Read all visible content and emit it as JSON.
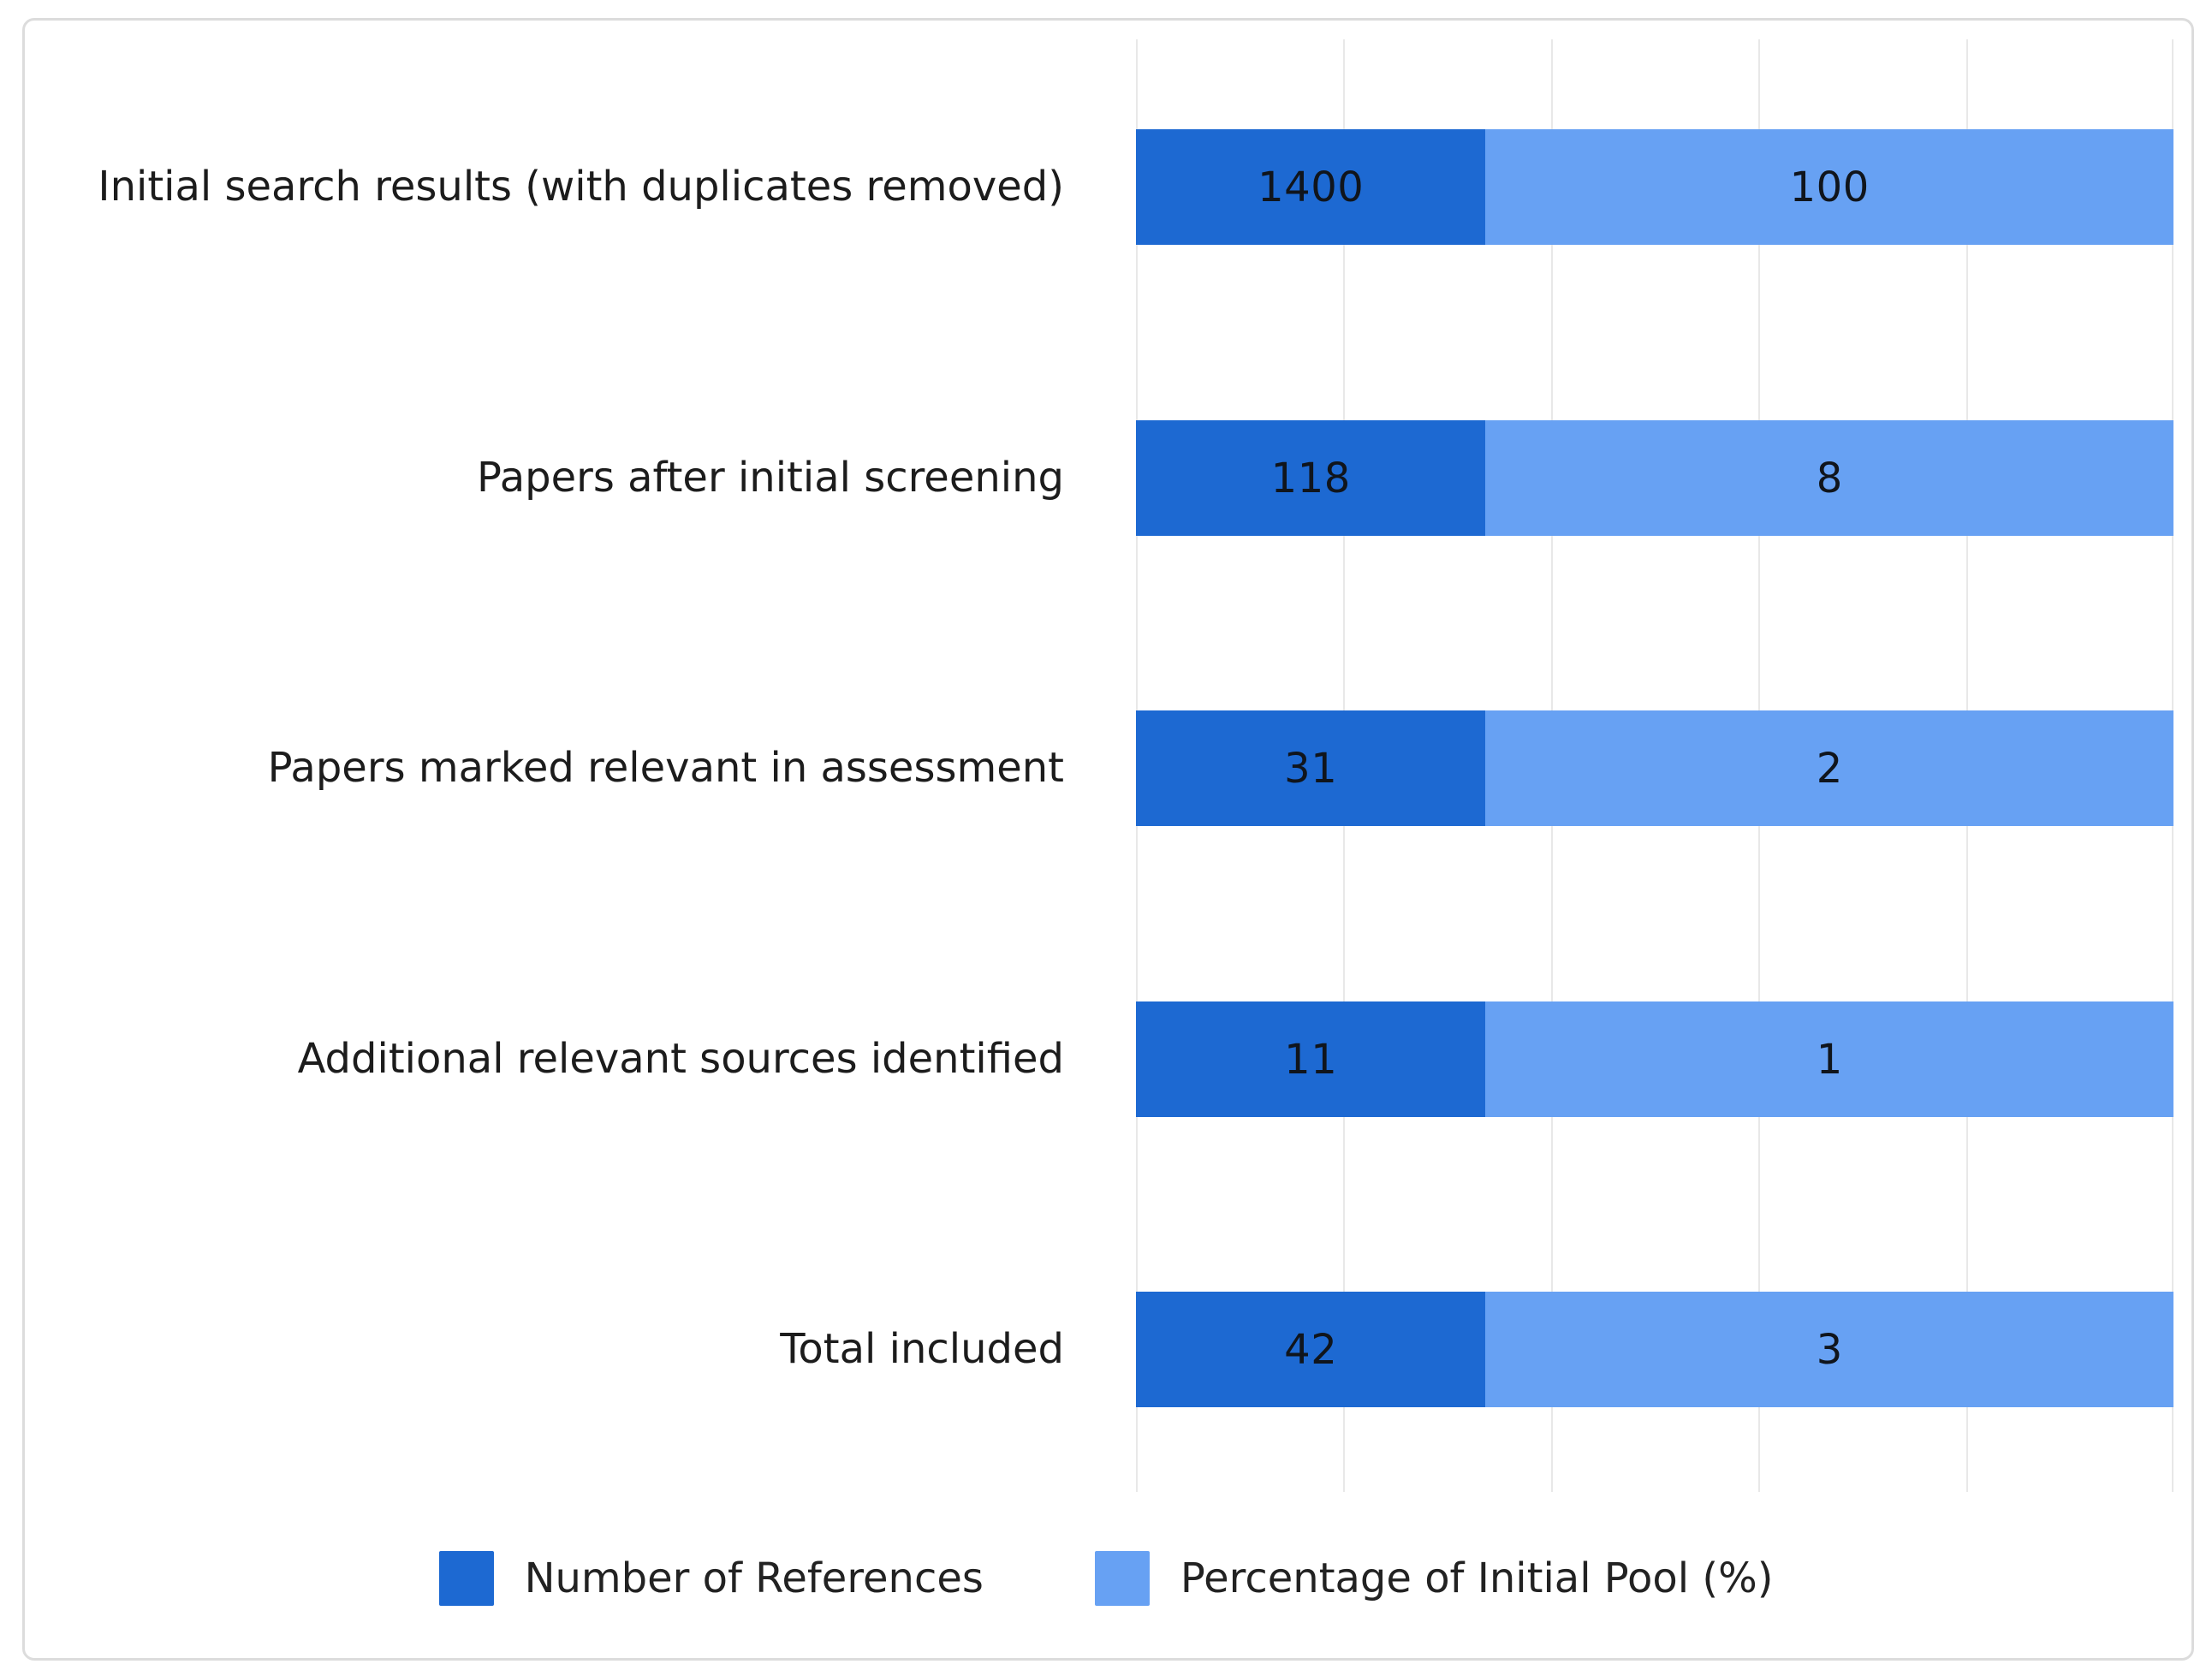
{
  "chart_data": {
    "type": "bar",
    "orientation": "horizontal",
    "stacked": true,
    "title": "",
    "xlabel": "",
    "ylabel": "",
    "categories": [
      "Initial search results (with duplicates removed)",
      "Papers after initial screening",
      "Papers marked relevant in assessment",
      "Additional relevant sources identified",
      "Total included"
    ],
    "series": [
      {
        "name": "Number of References",
        "color": "#1d69d2",
        "values": [
          1400,
          118,
          31,
          11,
          42
        ]
      },
      {
        "name": "Percentage of Initial Pool (%)",
        "color": "#67a1f3",
        "values": [
          100,
          8,
          2,
          1,
          3
        ]
      }
    ],
    "layout_hints": {
      "bars_drawn_uniform_width": true,
      "dark_segment_fraction": 0.337,
      "light_segment_fraction": 0.663,
      "value_labels_inside_segments": true,
      "vertical_gridlines": 6,
      "grid_on": true,
      "legend_position": "bottom"
    },
    "colors": {
      "references_blue": "#1d69d2",
      "percentage_blue": "#67a1f3",
      "gridline_gray": "#e8e8e8",
      "panel_border_gray": "#dcdcdc",
      "text_color": "#1c1c1c"
    }
  }
}
